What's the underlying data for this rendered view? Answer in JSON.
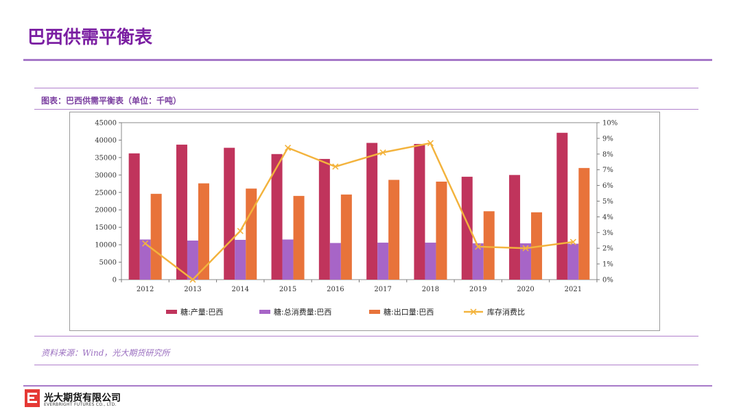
{
  "slide": {
    "title": "巴西供需平衡表",
    "caption": "图表：巴西供需平衡表（单位：千吨）",
    "source": "资料来源：Wind，光大期货研究所",
    "company_cn": "光大期货有限公司",
    "company_en": "EVERBRIGHT FUTURES CO., LTD."
  },
  "colors": {
    "title": "#7B1FA2",
    "production": "#C0345C",
    "consumption": "#A765C7",
    "export": "#E8733A",
    "ratio": "#F3B33D"
  },
  "chart_data": {
    "type": "bar",
    "categories": [
      "2012",
      "2013",
      "2014",
      "2015",
      "2016",
      "2017",
      "2018",
      "2019",
      "2020",
      "2021"
    ],
    "series": [
      {
        "name": "糖:产量:巴西",
        "type": "bar",
        "axis": "left",
        "values": [
          36200,
          38700,
          37800,
          36000,
          34600,
          39200,
          38900,
          29500,
          30000,
          42100
        ]
      },
      {
        "name": "糖:总消费量:巴西",
        "type": "bar",
        "axis": "left",
        "values": [
          11500,
          11200,
          11400,
          11500,
          10500,
          10600,
          10600,
          10400,
          10400,
          10300
        ]
      },
      {
        "name": "糖:出口量:巴西",
        "type": "bar",
        "axis": "left",
        "values": [
          24600,
          27600,
          26100,
          24000,
          24400,
          28600,
          28100,
          19600,
          19300,
          32000
        ]
      },
      {
        "name": "库存消费比",
        "type": "line",
        "axis": "right",
        "values": [
          2.3,
          0.0,
          3.1,
          8.4,
          7.2,
          8.1,
          8.7,
          2.1,
          2.0,
          2.4
        ]
      }
    ],
    "left_axis": {
      "min": 0,
      "max": 45000,
      "step": 5000,
      "ticks": [
        "0",
        "5000",
        "10000",
        "15000",
        "20000",
        "25000",
        "30000",
        "35000",
        "40000",
        "45000"
      ]
    },
    "right_axis": {
      "min": 0,
      "max": 10,
      "step": 1,
      "ticks": [
        "0%",
        "1%",
        "2%",
        "3%",
        "4%",
        "5%",
        "6%",
        "7%",
        "8%",
        "9%",
        "10%"
      ]
    },
    "grid": false,
    "legend_position": "bottom"
  }
}
